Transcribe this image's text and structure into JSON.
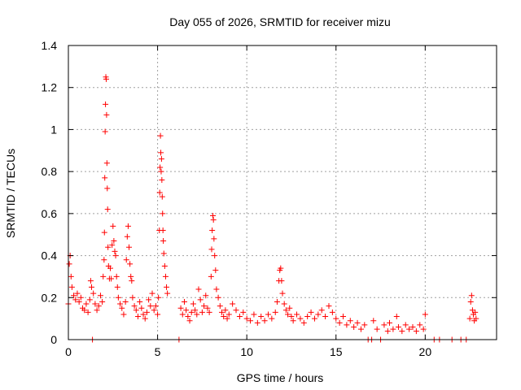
{
  "chart_data": {
    "type": "scatter",
    "title": "Day 055 of 2026, SRMTID for receiver mizu",
    "xlabel": "GPS time / hours",
    "ylabel": "SRMTID / TECUs",
    "xlim": [
      0,
      24
    ],
    "ylim": [
      0,
      1.4
    ],
    "xticks": [
      0,
      5,
      10,
      15,
      20
    ],
    "yticks": [
      0,
      0.2,
      0.4,
      0.6,
      0.8,
      1,
      1.2,
      1.4
    ],
    "xtick_labels": [
      "0",
      "5",
      "10",
      "15",
      "20"
    ],
    "ytick_labels": [
      "0",
      "0.2",
      "0.4",
      "0.6",
      "0.8",
      "1",
      "1.2",
      "1.4"
    ],
    "grid": true,
    "legend": "none",
    "marker": "+",
    "color": "#ff0000",
    "series": [
      {
        "name": "SRMTID",
        "points": [
          [
            0.0,
            0.17
          ],
          [
            0.05,
            0.36
          ],
          [
            0.1,
            0.4
          ],
          [
            0.15,
            0.3
          ],
          [
            0.2,
            0.25
          ],
          [
            0.3,
            0.21
          ],
          [
            0.4,
            0.19
          ],
          [
            0.5,
            0.22
          ],
          [
            0.6,
            0.18
          ],
          [
            0.7,
            0.2
          ],
          [
            0.8,
            0.15
          ],
          [
            0.9,
            0.14
          ],
          [
            1.0,
            0.17
          ],
          [
            1.1,
            0.13
          ],
          [
            1.2,
            0.19
          ],
          [
            1.25,
            0.28
          ],
          [
            1.3,
            0.25
          ],
          [
            1.35,
            0.0
          ],
          [
            1.4,
            0.22
          ],
          [
            1.5,
            0.17
          ],
          [
            1.6,
            0.14
          ],
          [
            1.7,
            0.16
          ],
          [
            1.8,
            0.21
          ],
          [
            1.9,
            0.18
          ],
          [
            1.95,
            0.3
          ],
          [
            2.0,
            0.38
          ],
          [
            2.02,
            0.51
          ],
          [
            2.04,
            0.77
          ],
          [
            2.06,
            0.99
          ],
          [
            2.08,
            1.12
          ],
          [
            2.1,
            1.25
          ],
          [
            2.12,
            1.24
          ],
          [
            2.14,
            1.07
          ],
          [
            2.16,
            0.84
          ],
          [
            2.18,
            0.72
          ],
          [
            2.2,
            0.62
          ],
          [
            2.22,
            0.44
          ],
          [
            2.25,
            0.35
          ],
          [
            2.3,
            0.29
          ],
          [
            2.35,
            0.34
          ],
          [
            2.4,
            0.29
          ],
          [
            2.45,
            0.45
          ],
          [
            2.5,
            0.54
          ],
          [
            2.55,
            0.47
          ],
          [
            2.6,
            0.42
          ],
          [
            2.65,
            0.4
          ],
          [
            2.7,
            0.3
          ],
          [
            2.75,
            0.25
          ],
          [
            2.8,
            0.2
          ],
          [
            2.9,
            0.17
          ],
          [
            3.0,
            0.15
          ],
          [
            3.1,
            0.12
          ],
          [
            3.2,
            0.18
          ],
          [
            3.25,
            0.38
          ],
          [
            3.3,
            0.49
          ],
          [
            3.35,
            0.54
          ],
          [
            3.4,
            0.44
          ],
          [
            3.45,
            0.36
          ],
          [
            3.5,
            0.3
          ],
          [
            3.55,
            0.28
          ],
          [
            3.6,
            0.2
          ],
          [
            3.7,
            0.16
          ],
          [
            3.8,
            0.14
          ],
          [
            3.9,
            0.11
          ],
          [
            4.0,
            0.18
          ],
          [
            4.1,
            0.15
          ],
          [
            4.2,
            0.12
          ],
          [
            4.3,
            0.1
          ],
          [
            4.4,
            0.13
          ],
          [
            4.5,
            0.19
          ],
          [
            4.6,
            0.16
          ],
          [
            4.7,
            0.22
          ],
          [
            4.8,
            0.14
          ],
          [
            4.9,
            0.16
          ],
          [
            5.0,
            0.12
          ],
          [
            5.05,
            0.2
          ],
          [
            5.1,
            0.52
          ],
          [
            5.12,
            0.7
          ],
          [
            5.14,
            0.82
          ],
          [
            5.16,
            0.97
          ],
          [
            5.18,
            0.89
          ],
          [
            5.2,
            0.8
          ],
          [
            5.22,
            0.86
          ],
          [
            5.24,
            0.76
          ],
          [
            5.26,
            0.68
          ],
          [
            5.28,
            0.6
          ],
          [
            5.3,
            0.52
          ],
          [
            5.32,
            0.47
          ],
          [
            5.35,
            0.41
          ],
          [
            5.4,
            0.35
          ],
          [
            5.45,
            0.3
          ],
          [
            5.5,
            0.25
          ],
          [
            5.55,
            0.22
          ],
          [
            6.2,
            0.0
          ],
          [
            6.3,
            0.15
          ],
          [
            6.4,
            0.12
          ],
          [
            6.5,
            0.18
          ],
          [
            6.6,
            0.14
          ],
          [
            6.7,
            0.11
          ],
          [
            6.8,
            0.09
          ],
          [
            6.9,
            0.13
          ],
          [
            7.0,
            0.17
          ],
          [
            7.1,
            0.14
          ],
          [
            7.2,
            0.12
          ],
          [
            7.3,
            0.24
          ],
          [
            7.4,
            0.19
          ],
          [
            7.5,
            0.13
          ],
          [
            7.6,
            0.16
          ],
          [
            7.7,
            0.21
          ],
          [
            7.8,
            0.15
          ],
          [
            7.9,
            0.13
          ],
          [
            8.0,
            0.3
          ],
          [
            8.03,
            0.43
          ],
          [
            8.06,
            0.52
          ],
          [
            8.1,
            0.59
          ],
          [
            8.13,
            0.57
          ],
          [
            8.16,
            0.48
          ],
          [
            8.2,
            0.4
          ],
          [
            8.25,
            0.33
          ],
          [
            8.3,
            0.24
          ],
          [
            8.4,
            0.2
          ],
          [
            8.5,
            0.16
          ],
          [
            8.6,
            0.13
          ],
          [
            8.7,
            0.11
          ],
          [
            8.8,
            0.14
          ],
          [
            8.9,
            0.1
          ],
          [
            9.0,
            0.12
          ],
          [
            9.2,
            0.17
          ],
          [
            9.4,
            0.14
          ],
          [
            9.6,
            0.11
          ],
          [
            9.8,
            0.13
          ],
          [
            10.0,
            0.1
          ],
          [
            10.2,
            0.09
          ],
          [
            10.4,
            0.12
          ],
          [
            10.6,
            0.08
          ],
          [
            10.8,
            0.11
          ],
          [
            11.0,
            0.09
          ],
          [
            11.2,
            0.12
          ],
          [
            11.4,
            0.1
          ],
          [
            11.6,
            0.13
          ],
          [
            11.7,
            0.18
          ],
          [
            11.8,
            0.28
          ],
          [
            11.85,
            0.33
          ],
          [
            11.9,
            0.34
          ],
          [
            11.95,
            0.28
          ],
          [
            12.0,
            0.22
          ],
          [
            12.1,
            0.17
          ],
          [
            12.2,
            0.14
          ],
          [
            12.3,
            0.12
          ],
          [
            12.4,
            0.15
          ],
          [
            12.5,
            0.11
          ],
          [
            12.6,
            0.09
          ],
          [
            12.8,
            0.12
          ],
          [
            13.0,
            0.1
          ],
          [
            13.2,
            0.08
          ],
          [
            13.4,
            0.11
          ],
          [
            13.6,
            0.13
          ],
          [
            13.8,
            0.1
          ],
          [
            14.0,
            0.12
          ],
          [
            14.2,
            0.14
          ],
          [
            14.4,
            0.11
          ],
          [
            14.6,
            0.16
          ],
          [
            14.8,
            0.13
          ],
          [
            15.0,
            0.1
          ],
          [
            15.2,
            0.08
          ],
          [
            15.4,
            0.11
          ],
          [
            15.6,
            0.07
          ],
          [
            15.8,
            0.09
          ],
          [
            16.0,
            0.06
          ],
          [
            16.2,
            0.08
          ],
          [
            16.4,
            0.05
          ],
          [
            16.6,
            0.07
          ],
          [
            16.8,
            0.0
          ],
          [
            17.0,
            0.0
          ],
          [
            17.1,
            0.09
          ],
          [
            17.3,
            0.05
          ],
          [
            17.5,
            0.0
          ],
          [
            17.7,
            0.07
          ],
          [
            17.9,
            0.04
          ],
          [
            18.0,
            0.08
          ],
          [
            18.2,
            0.05
          ],
          [
            18.4,
            0.11
          ],
          [
            18.5,
            0.06
          ],
          [
            18.7,
            0.04
          ],
          [
            18.9,
            0.07
          ],
          [
            19.1,
            0.05
          ],
          [
            19.3,
            0.06
          ],
          [
            19.5,
            0.04
          ],
          [
            19.7,
            0.07
          ],
          [
            19.9,
            0.05
          ],
          [
            20.0,
            0.12
          ],
          [
            20.5,
            0.0
          ],
          [
            20.8,
            0.0
          ],
          [
            21.5,
            0.0
          ],
          [
            22.0,
            0.0
          ],
          [
            22.3,
            0.0
          ],
          [
            22.5,
            0.1
          ],
          [
            22.55,
            0.18
          ],
          [
            22.6,
            0.21
          ],
          [
            22.65,
            0.14
          ],
          [
            22.7,
            0.12
          ],
          [
            22.75,
            0.09
          ],
          [
            22.8,
            0.13
          ],
          [
            22.85,
            0.1
          ]
        ]
      }
    ]
  }
}
